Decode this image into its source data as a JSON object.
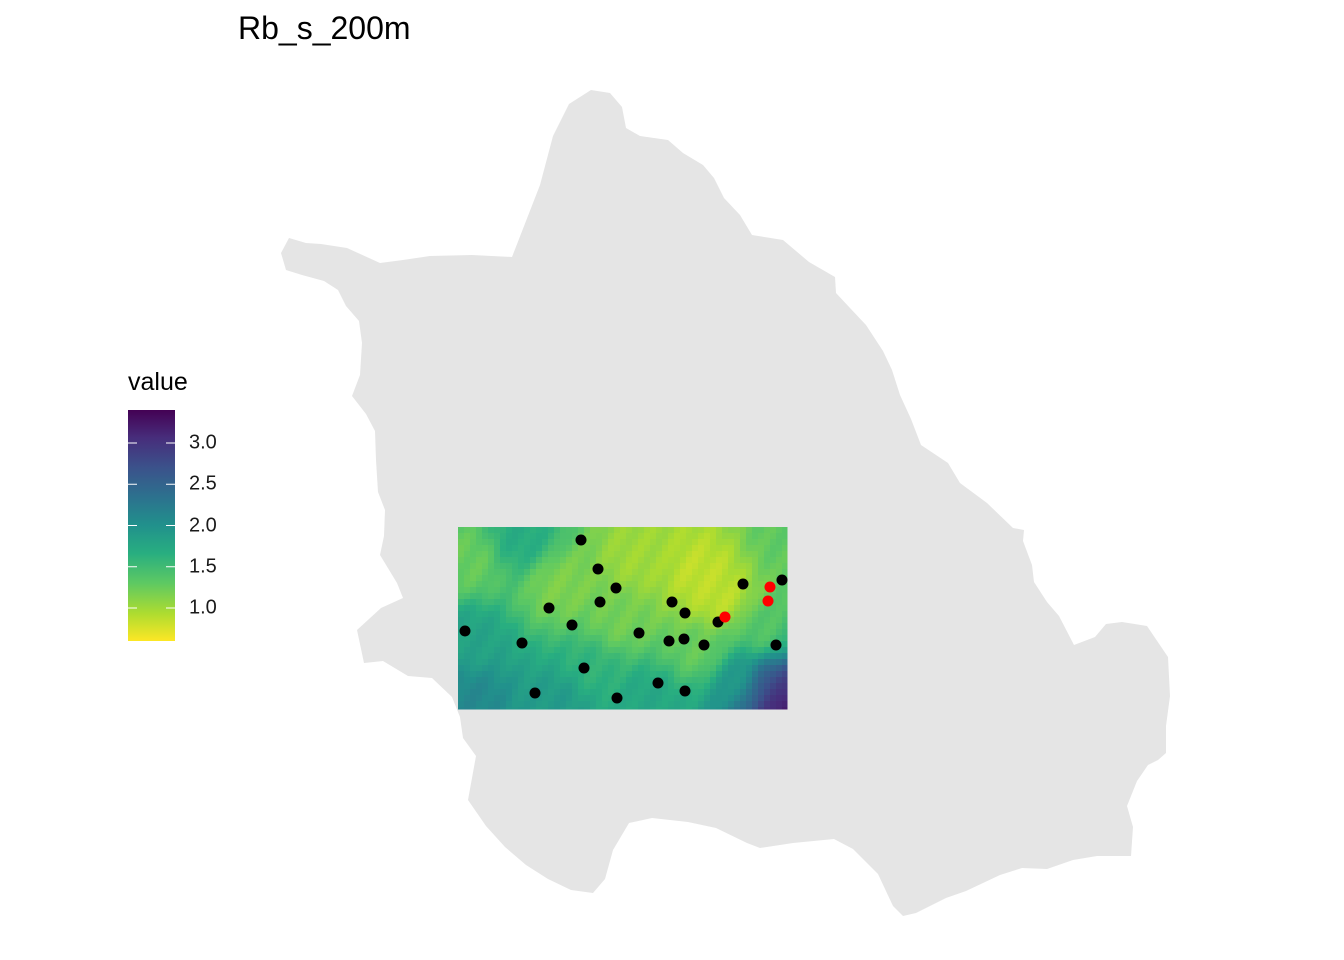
{
  "title": "Rb_s_200m",
  "legend": {
    "title": "value",
    "min": 0.6,
    "max": 3.4,
    "ticks": [
      {
        "value": 3.0,
        "label": "3.0"
      },
      {
        "value": 2.5,
        "label": "2.5"
      },
      {
        "value": 2.0,
        "label": "2.0"
      },
      {
        "value": 1.5,
        "label": "1.5"
      },
      {
        "value": 1.0,
        "label": "1.0"
      }
    ],
    "colormap": "viridis (reversed: low = yellow, high = purple)"
  },
  "colors": {
    "region_fill": "#e5e5e5",
    "point_default": "#000000",
    "point_highlight": "#ff0000"
  }
}
